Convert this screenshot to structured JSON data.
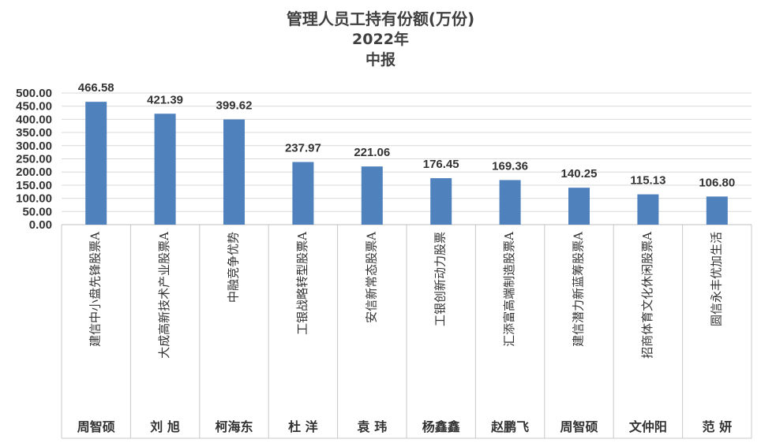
{
  "chart_data": {
    "type": "bar",
    "title_lines": [
      "管理人员工持有份额(万份)",
      "2022年",
      "中报"
    ],
    "categories": [
      "建信中小盘先锋股票A",
      "大成高新技术产业股票A",
      "中融竞争优势",
      "工银战略转型股票A",
      "安信新常态股票A",
      "工银创新动力股票",
      "汇添富高端制造股票A",
      "建信潜力新蓝筹股票A",
      "招商体育文化休闲股票A",
      "圆信永丰优加生活"
    ],
    "managers": [
      "周智硕",
      "刘 旭",
      "柯海东",
      "杜 洋",
      "袁 玮",
      "杨鑫鑫",
      "赵鹏飞",
      "周智硕",
      "文仲阳",
      "范 妍"
    ],
    "values": [
      466.58,
      421.39,
      399.62,
      237.97,
      221.06,
      176.45,
      169.36,
      140.25,
      115.13,
      106.8
    ],
    "value_labels": [
      "466.58",
      "421.39",
      "399.62",
      "237.97",
      "221.06",
      "176.45",
      "169.36",
      "140.25",
      "115.13",
      "106.80"
    ],
    "yticks": [
      "0.00",
      "50.00",
      "100.00",
      "150.00",
      "200.00",
      "250.00",
      "300.00",
      "350.00",
      "400.00",
      "450.00",
      "500.00"
    ],
    "ylim": [
      0,
      500
    ],
    "bar_color": "#4f81bd",
    "grid": true
  }
}
